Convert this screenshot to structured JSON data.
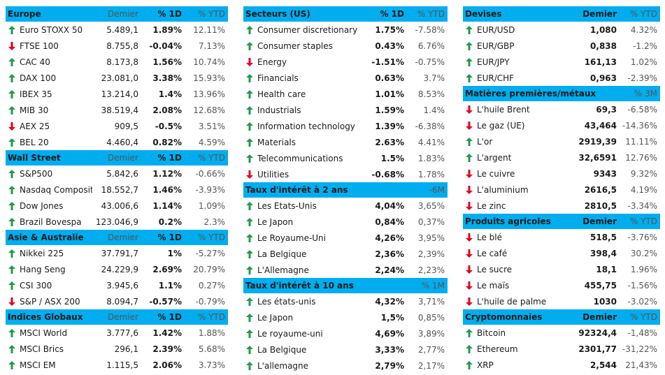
{
  "colors": {
    "header_bg": "#00adef",
    "up": "#1f9a4a",
    "down": "#e1001e"
  },
  "europe": {
    "title": "Europe",
    "h1": "Demier",
    "h2": "% 1D",
    "h3": "% YTD",
    "rows": [
      {
        "name": "Euro STOXX 50",
        "v": "5.489,1",
        "d": "1.89%",
        "y": "12.11%",
        "dir": "up"
      },
      {
        "name": "FTSE 100",
        "v": "8.755,8",
        "d": "-0.04%",
        "y": "7.13%",
        "dir": "down"
      },
      {
        "name": "CAC 40",
        "v": "8.173,8",
        "d": "1.56%",
        "y": "10.74%",
        "dir": "up"
      },
      {
        "name": "DAX 100",
        "v": "23.081,0",
        "d": "3.38%",
        "y": "15.93%",
        "dir": "up"
      },
      {
        "name": "IBEX 35",
        "v": "13.214,0",
        "d": "1.4%",
        "y": "13.96%",
        "dir": "up"
      },
      {
        "name": "MIB 30",
        "v": "38.519,4",
        "d": "2.08%",
        "y": "12.68%",
        "dir": "up"
      },
      {
        "name": "AEX 25",
        "v": "909,5",
        "d": "-0.5%",
        "y": "3.51%",
        "dir": "down"
      },
      {
        "name": "BEL 20",
        "v": "4.460,4",
        "d": "0.82%",
        "y": "4.59%",
        "dir": "up"
      }
    ]
  },
  "wallstreet": {
    "title": "Wall Street",
    "h1": "Demier",
    "h2": "% 1D",
    "h3": "% YTD",
    "rows": [
      {
        "name": "S&P500",
        "v": "5.842,6",
        "d": "1.12%",
        "y": "-0.66%",
        "dir": "up"
      },
      {
        "name": "Nasdaq Composite",
        "v": "18.552,7",
        "d": "1.46%",
        "y": "-3.93%",
        "dir": "up"
      },
      {
        "name": "Dow Jones",
        "v": "43.006,6",
        "d": "1.14%",
        "y": "1.09%",
        "dir": "up"
      },
      {
        "name": "Brazil Bovespa",
        "v": "123.046,9",
        "d": "0.2%",
        "y": "2.3%",
        "dir": "up"
      }
    ]
  },
  "asie": {
    "title": "Asie & Australie",
    "h1": "Demier",
    "h2": "% 1D",
    "h3": "% YTD",
    "rows": [
      {
        "name": "Nikkei 225",
        "v": "37.791,7",
        "d": "1%",
        "y": "-5.27%",
        "dir": "up"
      },
      {
        "name": "Hang Seng",
        "v": "24.229,9",
        "d": "2.69%",
        "y": "20.79%",
        "dir": "up"
      },
      {
        "name": "CSI 300",
        "v": "3.945,6",
        "d": "1.1%",
        "y": "0.27%",
        "dir": "up"
      },
      {
        "name": "S&P / ASX 200",
        "v": "8.094,7",
        "d": "-0.57%",
        "y": "-0.79%",
        "dir": "down"
      }
    ]
  },
  "globaux": {
    "title": "Indices Globaux",
    "h1": "Demier",
    "h2": "% 1D",
    "h3": "% YTD",
    "rows": [
      {
        "name": "MSCI World",
        "v": "3.777,6",
        "d": "1.42%",
        "y": "1.88%",
        "dir": "up"
      },
      {
        "name": "MSCI Brics",
        "v": "296,1",
        "d": "2.39%",
        "y": "5.68%",
        "dir": "up"
      },
      {
        "name": "MSCI EM",
        "v": "1.115,5",
        "d": "2.06%",
        "y": "3.73%",
        "dir": "up"
      }
    ]
  },
  "secteurs": {
    "title": "Secteurs (US)",
    "h2": "% 1D",
    "h3": "% YTD",
    "rows": [
      {
        "name": "Consumer discretionary",
        "d": "1.75%",
        "y": "-7.58%",
        "dir": "up"
      },
      {
        "name": "Consumer staples",
        "d": "0.43%",
        "y": "6.76%",
        "dir": "up"
      },
      {
        "name": "Energy",
        "d": "-1.51%",
        "y": "-0.75%",
        "dir": "down"
      },
      {
        "name": "Financials",
        "d": "0.63%",
        "y": "3.7%",
        "dir": "up"
      },
      {
        "name": "Health care",
        "d": "1.01%",
        "y": "8.53%",
        "dir": "up"
      },
      {
        "name": "Industrials",
        "d": "1.59%",
        "y": "1.4%",
        "dir": "up"
      },
      {
        "name": "Information technology",
        "d": "1.39%",
        "y": "-6.38%",
        "dir": "up"
      },
      {
        "name": "Materials",
        "d": "2.63%",
        "y": "4.41%",
        "dir": "up"
      },
      {
        "name": "Telecommunications",
        "d": "1.5%",
        "y": "1.83%",
        "dir": "up"
      },
      {
        "name": "Utilities",
        "d": "-0.68%",
        "y": "1.78%",
        "dir": "down"
      }
    ]
  },
  "taux2": {
    "title": "Taux d'intérêt à 2 ans",
    "h3": "-6M",
    "rows": [
      {
        "name": "Les Etats-Unis",
        "d": "4,04%",
        "y": "3,65%",
        "dir": "up"
      },
      {
        "name": "Le Japon",
        "d": "0,84%",
        "y": "0,37%",
        "dir": "up"
      },
      {
        "name": "Le Royaume-Uni",
        "d": "4,26%",
        "y": "3,95%",
        "dir": "up"
      },
      {
        "name": "La Belgique",
        "d": "2,36%",
        "y": "2,39%",
        "dir": "up"
      },
      {
        "name": "L'Allemagne",
        "d": "2,24%",
        "y": "2,23%",
        "dir": "up"
      }
    ]
  },
  "taux10": {
    "title": "Taux d'intérêt à 10 ans",
    "h3": "% 1M",
    "rows": [
      {
        "name": "Les états-unis",
        "d": "4,32%",
        "y": "3,71%",
        "dir": "up"
      },
      {
        "name": "Le Japon",
        "d": "1,5%",
        "y": "0,85%",
        "dir": "up"
      },
      {
        "name": "Le royaume-uni",
        "d": "4,69%",
        "y": "3,89%",
        "dir": "up"
      },
      {
        "name": "La Belgique",
        "d": "3,33%",
        "y": "2,77%",
        "dir": "up"
      },
      {
        "name": "L'allemagne",
        "d": "2,79%",
        "y": "2,17%",
        "dir": "up"
      }
    ]
  },
  "devises": {
    "title": "Devises",
    "h1": "Demier",
    "h3": "% YTD",
    "rows": [
      {
        "name": "EUR/USD",
        "v": "1,080",
        "y": "4.32%",
        "dir": "up"
      },
      {
        "name": "EUR/GBP",
        "v": "0,838",
        "y": "-1.2%",
        "dir": "up"
      },
      {
        "name": "EUR/JPY",
        "v": "161,13",
        "y": "1.02%",
        "dir": "up"
      },
      {
        "name": "EUR/CHF",
        "v": "0,963",
        "y": "-2.39%",
        "dir": "up"
      }
    ]
  },
  "matieres": {
    "title": "Matières premières/métaux",
    "h3": "% 3M",
    "rows": [
      {
        "name": "L'huile Brent",
        "v": "69,3",
        "y": "-6.58%",
        "dir": "down"
      },
      {
        "name": "Le gaz (UE)",
        "v": "43,464",
        "y": "-14.36%",
        "dir": "down"
      },
      {
        "name": "L'or",
        "v": "2919,39",
        "y": "11.11%",
        "dir": "up"
      },
      {
        "name": "L'argent",
        "v": "32,6591",
        "y": "12.76%",
        "dir": "up"
      },
      {
        "name": "Le cuivre",
        "v": "9343",
        "y": "9.32%",
        "dir": "down"
      },
      {
        "name": "L'aluminium",
        "v": "2616,5",
        "y": "4.19%",
        "dir": "down"
      },
      {
        "name": "Le zinc",
        "v": "2810,5",
        "y": "-3.34%",
        "dir": "down"
      }
    ]
  },
  "agricoles": {
    "title": "Produits agricoles",
    "h1": "Demier",
    "h3": "% YTD",
    "rows": [
      {
        "name": "Le blé",
        "v": "518,5",
        "y": "-3.76%",
        "dir": "down"
      },
      {
        "name": "Le café",
        "v": "398,4",
        "y": "30.2%",
        "dir": "down"
      },
      {
        "name": "Le sucre",
        "v": "18,1",
        "y": "1.96%",
        "dir": "down"
      },
      {
        "name": "Le maïs",
        "v": "455,75",
        "y": "-1.56%",
        "dir": "down"
      },
      {
        "name": "L'huile de palme",
        "v": "1030",
        "y": "-3.02%",
        "dir": "down"
      }
    ]
  },
  "crypto": {
    "title": "Cryptomonnaies",
    "h1": "Demier",
    "h3": "% YTD",
    "rows": [
      {
        "name": "Bitcoin",
        "v": "92324,4",
        "y": "-1,48%",
        "dir": "up"
      },
      {
        "name": "Ethereum",
        "v": "2301,77",
        "y": "-31,22%",
        "dir": "up"
      },
      {
        "name": "XRP",
        "v": "2,544",
        "y": "21,43%",
        "dir": "up"
      }
    ]
  }
}
